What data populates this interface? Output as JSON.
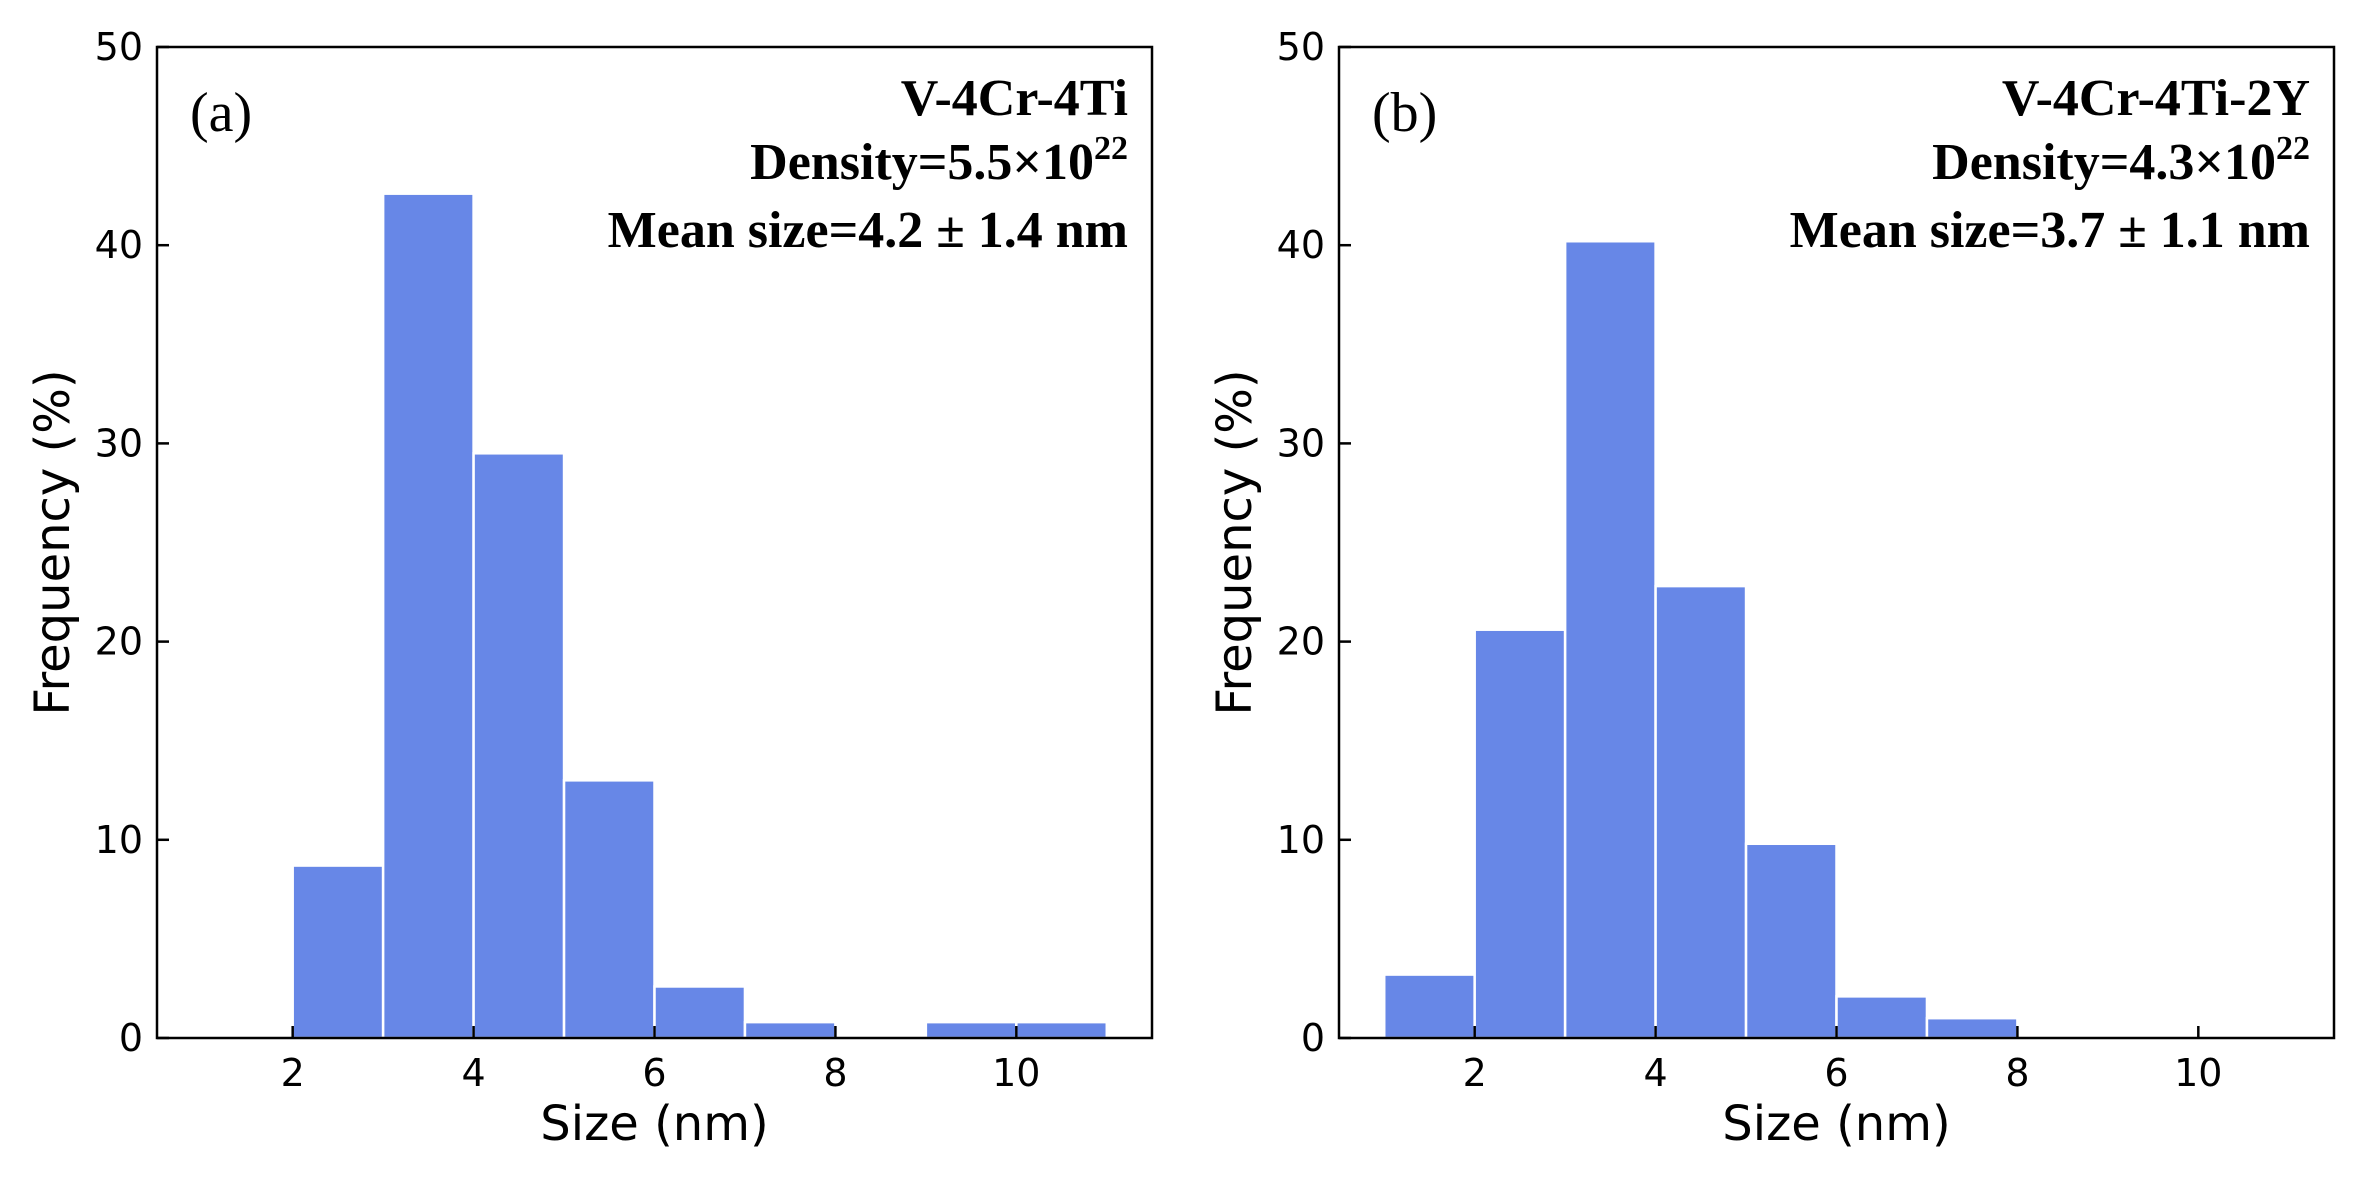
{
  "chart_data": [
    {
      "type": "bar",
      "panel_label": "(a)",
      "annotation_title": "V-4Cr-4Ti",
      "annotation_density_prefix": "Density=5.5×10",
      "annotation_density_exp": "22",
      "annotation_mean": "Mean size=4.2 ± 1.4 nm",
      "xlabel": "Size (nm)",
      "ylabel": "Frequency (%)",
      "xlim": [
        0.5,
        11.5
      ],
      "ylim": [
        0,
        50
      ],
      "xticks": [
        "2",
        "4",
        "6",
        "8",
        "10"
      ],
      "yticks": [
        "0",
        "10",
        "20",
        "30",
        "40",
        "50"
      ],
      "bin_width": 1,
      "bin_starts": [
        2,
        3,
        4,
        5,
        6,
        7,
        9,
        10
      ],
      "values": [
        8.7,
        42.6,
        29.5,
        13.0,
        2.6,
        0.8,
        0.8,
        0.8
      ],
      "color": "#6787e7"
    },
    {
      "type": "bar",
      "panel_label": "(b)",
      "annotation_title": "V-4Cr-4Ti-2Y",
      "annotation_density_prefix": "Density=4.3×10",
      "annotation_density_exp": "22",
      "annotation_mean": "Mean size=3.7 ± 1.1 nm",
      "xlabel": "Size (nm)",
      "ylabel": "Frequency (%)",
      "xlim": [
        0.5,
        11.5
      ],
      "ylim": [
        0,
        50
      ],
      "xticks": [
        "2",
        "4",
        "6",
        "8",
        "10"
      ],
      "yticks": [
        "0",
        "10",
        "20",
        "30",
        "40",
        "50"
      ],
      "bin_width": 1,
      "bin_starts": [
        1,
        2,
        3,
        4,
        5,
        6,
        7
      ],
      "values": [
        3.2,
        20.6,
        40.2,
        22.8,
        9.8,
        2.1,
        1.0
      ],
      "color": "#6787e7"
    }
  ]
}
